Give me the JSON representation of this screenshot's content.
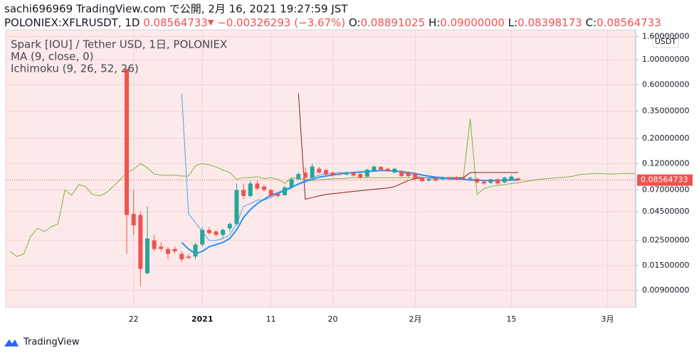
{
  "header": {
    "line1": "sachi696969 TradingView.com で公開, 2月 16, 2021 19:27:59 JST",
    "symbol": "POLONIEX:XFLRUSDT, 1D",
    "price": "0.08564733",
    "arrow": "▼",
    "change": "−0.00326293 (−3.67%)",
    "o_label": "O:",
    "o": "0.08891025",
    "h_label": "H:",
    "h": "0.09000000",
    "l_label": "L:",
    "l": "0.08398173",
    "c_label": "C:",
    "c": "0.08564733"
  },
  "chart_data": {
    "type": "candlestick",
    "legend": [
      "Spark [IOU] / Tether USD, 1日, POLONIEX",
      "MA (9, close, 0)",
      "Ichimoku (9, 26, 52, 26)"
    ],
    "axis_unit": "USDT",
    "log_scale": true,
    "grid": true,
    "up_color": "#26a69a",
    "down_color": "#ef5350",
    "ylim": [
      0.00637,
      1.84
    ],
    "yticks": [
      {
        "value": 1.6,
        "label": "1.60000000"
      },
      {
        "value": 1.0,
        "label": "1.00000000"
      },
      {
        "value": 0.6,
        "label": "0.60000000"
      },
      {
        "value": 0.35,
        "label": "0.35000000"
      },
      {
        "value": 0.2,
        "label": "0.20000000"
      },
      {
        "value": 0.12,
        "label": "0.12000000"
      },
      {
        "value": 0.07,
        "label": "0.07000000"
      },
      {
        "value": 0.045,
        "label": "0.04500000"
      },
      {
        "value": 0.025,
        "label": "0.02500000"
      },
      {
        "value": 0.015,
        "label": "0.01500000"
      },
      {
        "value": 0.009,
        "label": "0.00900000"
      }
    ],
    "last_price": 0.08564733,
    "last_price_color": "#ef5350",
    "categories": [
      null,
      null,
      null,
      null,
      null,
      null,
      null,
      null,
      null,
      null,
      null,
      null,
      null,
      null,
      null,
      null,
      null,
      null,
      "22",
      null,
      null,
      null,
      null,
      null,
      null,
      null,
      null,
      null,
      "2021",
      null,
      null,
      null,
      null,
      null,
      null,
      null,
      null,
      null,
      "11",
      null,
      null,
      null,
      null,
      null,
      null,
      null,
      null,
      "20",
      null,
      null,
      null,
      null,
      null,
      null,
      null,
      null,
      null,
      null,
      null,
      "2月",
      null,
      null,
      null,
      null,
      null,
      null,
      null,
      null,
      null,
      null,
      null,
      null,
      null,
      "15",
      null,
      null,
      null,
      null,
      null,
      null,
      null,
      null,
      null,
      null,
      null,
      null,
      null,
      "3月",
      null,
      null,
      null,
      null
    ],
    "open": [
      null,
      null,
      null,
      null,
      null,
      null,
      null,
      null,
      null,
      null,
      null,
      null,
      null,
      null,
      null,
      null,
      null,
      0.83,
      0.043,
      0.042,
      0.0128,
      0.025,
      0.022,
      0.021,
      0.021,
      0.019,
      0.018,
      0.018,
      0.023,
      0.031,
      0.03,
      0.028,
      0.032,
      0.035,
      0.07,
      0.062,
      0.08,
      0.075,
      0.07,
      0.065,
      0.063,
      0.074,
      0.087,
      0.1,
      0.09,
      0.108,
      0.105,
      0.1,
      0.098,
      0.096,
      0.1,
      0.097,
      0.092,
      0.104,
      0.112,
      0.108,
      0.1,
      0.103,
      0.1,
      0.098,
      0.09,
      0.085,
      0.089,
      0.087,
      0.09,
      0.091,
      0.09,
      0.088,
      0.088,
      0.083,
      0.081,
      0.087,
      0.082,
      0.087,
      0.08891025,
      null,
      null,
      null,
      null,
      null,
      null,
      null,
      null,
      null,
      null,
      null,
      null,
      null,
      null,
      null,
      null,
      null
    ],
    "high": [
      null,
      null,
      null,
      null,
      null,
      null,
      null,
      null,
      null,
      null,
      null,
      null,
      null,
      null,
      null,
      null,
      null,
      0.83,
      0.07,
      0.045,
      0.05,
      0.028,
      0.024,
      0.022,
      0.022,
      0.02,
      0.019,
      0.024,
      0.033,
      0.033,
      0.031,
      0.032,
      0.036,
      0.08,
      0.08,
      0.085,
      0.085,
      0.078,
      0.072,
      0.067,
      0.076,
      0.089,
      0.1,
      0.11,
      0.12,
      0.112,
      0.108,
      0.102,
      0.1,
      0.102,
      0.102,
      0.099,
      0.108,
      0.116,
      0.114,
      0.11,
      0.11,
      0.105,
      0.102,
      0.1,
      0.092,
      0.09,
      0.091,
      0.092,
      0.092,
      0.093,
      0.092,
      0.092,
      0.09,
      0.085,
      0.088,
      0.089,
      0.092,
      0.095,
      0.09,
      null,
      null,
      null,
      null,
      null,
      null,
      null,
      null,
      null,
      null,
      null,
      null,
      null,
      null,
      null,
      null,
      null
    ],
    "low": [
      null,
      null,
      null,
      null,
      null,
      null,
      null,
      null,
      null,
      null,
      null,
      null,
      null,
      null,
      null,
      null,
      null,
      0.019,
      0.028,
      0.0098,
      0.0125,
      0.02,
      0.02,
      0.017,
      0.019,
      0.016,
      0.017,
      0.017,
      0.022,
      0.028,
      0.027,
      0.026,
      0.03,
      0.034,
      0.058,
      0.06,
      0.07,
      0.068,
      0.06,
      0.06,
      0.062,
      0.072,
      0.085,
      0.088,
      0.088,
      0.098,
      0.094,
      0.092,
      0.094,
      0.094,
      0.092,
      0.088,
      0.09,
      0.102,
      0.104,
      0.101,
      0.098,
      0.091,
      0.091,
      0.086,
      0.082,
      0.083,
      0.083,
      0.085,
      0.086,
      0.086,
      0.087,
      0.086,
      0.08,
      0.078,
      0.079,
      0.078,
      0.08,
      0.085,
      0.08398173,
      null,
      null,
      null,
      null,
      null,
      null,
      null,
      null,
      null,
      null,
      null,
      null,
      null,
      null,
      null,
      null,
      null
    ],
    "close": [
      null,
      null,
      null,
      null,
      null,
      null,
      null,
      null,
      null,
      null,
      null,
      null,
      null,
      null,
      null,
      null,
      null,
      0.042,
      0.034,
      0.014,
      0.026,
      0.021,
      0.021,
      0.019,
      0.02,
      0.017,
      0.0175,
      0.023,
      0.031,
      0.029,
      0.028,
      0.031,
      0.035,
      0.07,
      0.062,
      0.08,
      0.072,
      0.07,
      0.062,
      0.062,
      0.074,
      0.087,
      0.097,
      0.09,
      0.113,
      0.1,
      0.096,
      0.094,
      0.096,
      0.1,
      0.094,
      0.09,
      0.106,
      0.113,
      0.106,
      0.103,
      0.108,
      0.093,
      0.093,
      0.088,
      0.084,
      0.088,
      0.085,
      0.09,
      0.088,
      0.087,
      0.088,
      0.09,
      0.082,
      0.08,
      0.087,
      0.08,
      0.09,
      0.092,
      0.08564733,
      null,
      null,
      null,
      null,
      null,
      null,
      null,
      null,
      null,
      null,
      null,
      null,
      null,
      null,
      null,
      null,
      null
    ],
    "lines": [
      {
        "color": "#7cb342",
        "values": [
          0.02,
          0.018,
          0.019,
          0.027,
          0.032,
          0.03,
          0.033,
          0.035,
          0.07,
          0.063,
          0.078,
          0.075,
          0.064,
          0.062,
          0.066,
          0.075,
          0.086,
          0.1,
          0.107,
          0.12,
          0.11,
          0.097,
          0.095,
          0.094,
          0.095,
          0.093,
          0.093,
          0.115,
          0.12,
          0.117,
          0.112,
          0.105,
          0.1,
          0.087,
          0.09,
          0.09,
          0.092,
          0.088,
          0.09,
          0.087,
          0.08,
          0.09,
          0.088,
          0.087,
          0.085,
          0.086,
          0.087,
          0.088,
          0.088,
          0.089,
          0.09,
          0.09,
          0.09,
          0.09,
          0.09,
          0.09,
          0.09,
          0.09,
          0.09,
          0.09,
          0.09,
          0.09,
          0.09,
          0.09,
          0.09,
          0.09,
          0.09,
          0.3,
          0.064,
          0.072,
          0.075,
          0.077,
          0.078,
          0.08,
          0.081,
          0.083,
          0.085,
          0.087,
          0.088,
          0.089,
          0.09,
          0.091,
          0.093,
          0.096,
          0.097,
          0.098,
          0.098,
          0.097,
          0.097,
          0.098,
          0.098,
          0.098
        ]
      },
      {
        "color": "#8b1a1a",
        "values": [
          null,
          null,
          null,
          null,
          null,
          null,
          null,
          null,
          null,
          null,
          null,
          null,
          null,
          null,
          null,
          null,
          null,
          null,
          null,
          null,
          null,
          null,
          null,
          null,
          null,
          null,
          null,
          null,
          null,
          null,
          null,
          null,
          null,
          null,
          null,
          null,
          null,
          null,
          null,
          null,
          null,
          null,
          0.5,
          0.058,
          0.06,
          0.062,
          0.064,
          0.065,
          0.066,
          0.067,
          0.068,
          0.069,
          0.07,
          0.071,
          0.072,
          0.073,
          0.075,
          0.08,
          0.085,
          0.088,
          0.09,
          0.09,
          0.09,
          0.09,
          0.09,
          0.09,
          0.09,
          0.1,
          0.1,
          0.1,
          0.1,
          0.1,
          0.1,
          0.1,
          0.1,
          null,
          null,
          null,
          null,
          null,
          null,
          null,
          null,
          null,
          null,
          null,
          null,
          null,
          null,
          null,
          null,
          null
        ]
      },
      {
        "color": "#42a5f5",
        "values": [
          null,
          null,
          null,
          null,
          null,
          null,
          null,
          null,
          null,
          null,
          null,
          null,
          null,
          null,
          null,
          null,
          null,
          null,
          null,
          null,
          null,
          null,
          null,
          null,
          null,
          0.5,
          0.043,
          0.036,
          0.03,
          0.025,
          0.025,
          0.026,
          0.028,
          0.035,
          0.05,
          0.053,
          0.057,
          0.057,
          0.06,
          0.065,
          0.068,
          0.073,
          0.08,
          0.085,
          0.09,
          0.095,
          0.097,
          0.098,
          0.1,
          0.1,
          0.1,
          0.1,
          0.103,
          0.104,
          0.104,
          0.104,
          0.104,
          0.1,
          0.097,
          0.094,
          0.09,
          0.09,
          0.088,
          0.088,
          0.087,
          0.087,
          0.087,
          0.085,
          0.085,
          0.085,
          0.085,
          0.085,
          0.085,
          0.085,
          0.085,
          null,
          null,
          null,
          null,
          null,
          null,
          null,
          null,
          null,
          null,
          null,
          null,
          null,
          null,
          null,
          null,
          null
        ]
      },
      {
        "color": "#2196f3",
        "values": [
          null,
          null,
          null,
          null,
          null,
          null,
          null,
          null,
          null,
          null,
          null,
          null,
          null,
          null,
          null,
          null,
          null,
          null,
          null,
          null,
          null,
          null,
          null,
          null,
          null,
          0.024,
          0.021,
          0.019,
          0.02,
          0.022,
          0.023,
          0.024,
          0.026,
          0.031,
          0.04,
          0.047,
          0.053,
          0.058,
          0.063,
          0.066,
          0.07,
          0.074,
          0.079,
          0.083,
          0.087,
          0.091,
          0.093,
          0.095,
          0.097,
          0.099,
          0.1,
          0.101,
          0.102,
          0.103,
          0.104,
          0.104,
          0.103,
          0.102,
          0.1,
          0.098,
          0.095,
          0.093,
          0.091,
          0.09,
          0.089,
          0.088,
          0.087,
          0.086,
          0.086,
          0.085,
          0.085,
          0.085,
          0.086,
          0.086,
          0.087,
          null,
          null,
          null,
          null,
          null,
          null,
          null,
          null,
          null,
          null,
          null,
          null,
          null,
          null,
          null,
          null,
          null
        ]
      }
    ]
  },
  "footer": {
    "brand": "TradingView"
  }
}
